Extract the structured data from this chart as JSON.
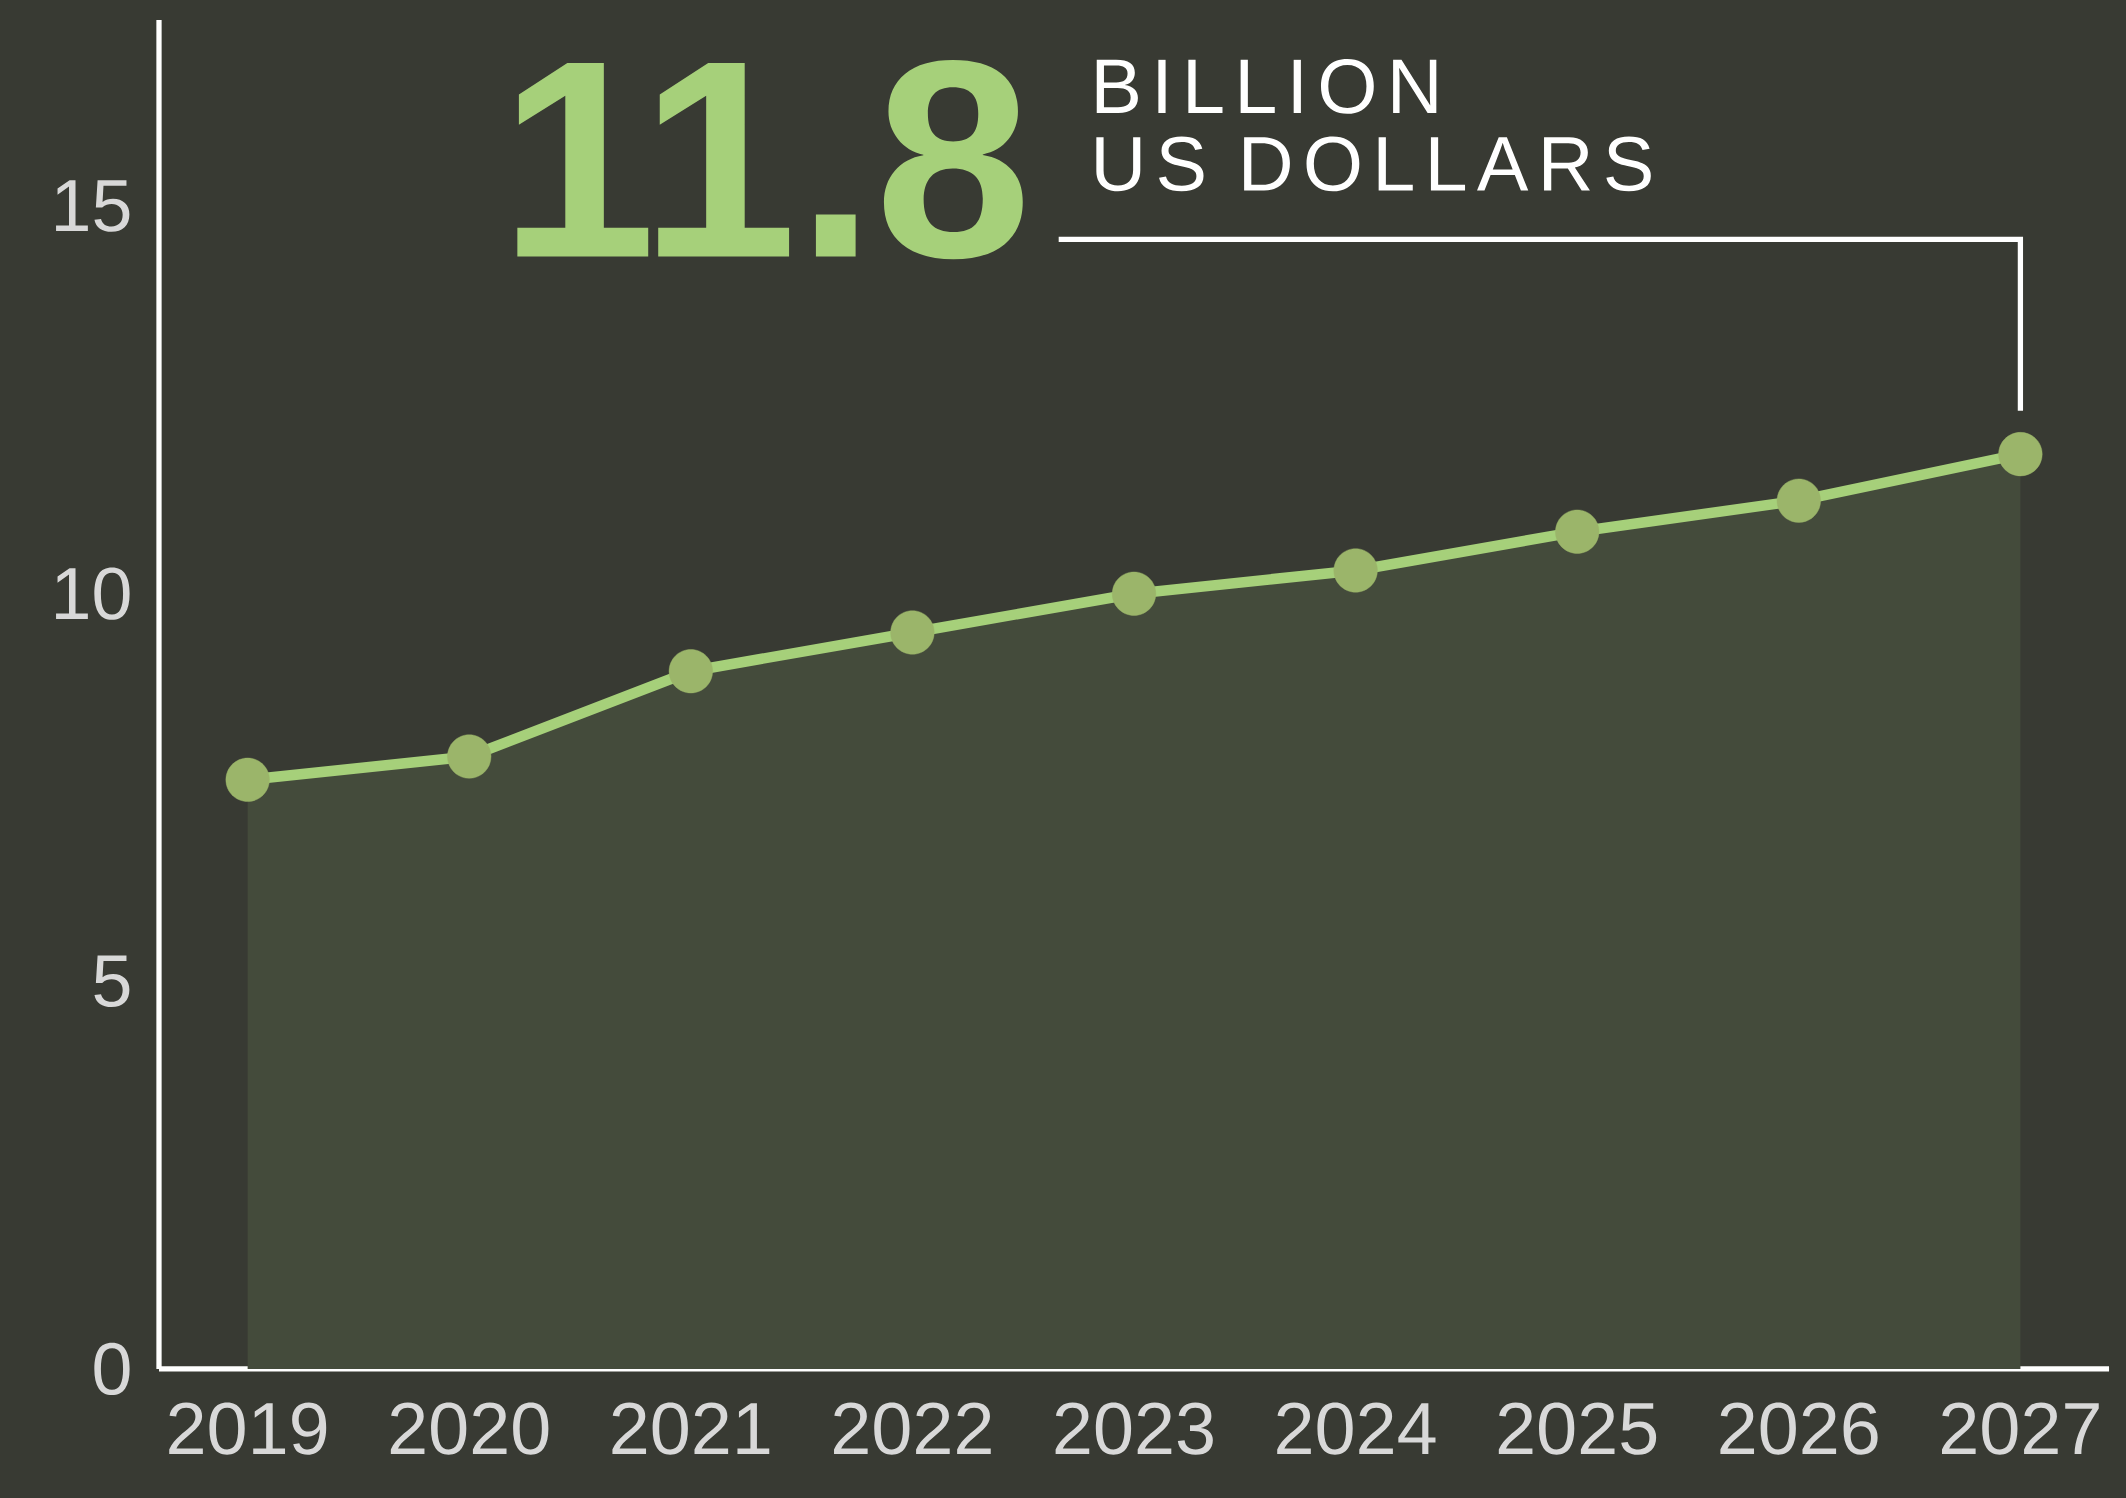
{
  "chart_data": {
    "type": "area",
    "x": [
      2019,
      2020,
      2021,
      2022,
      2023,
      2024,
      2025,
      2026,
      2027
    ],
    "values": [
      7.6,
      7.9,
      9.0,
      9.5,
      10.0,
      10.3,
      10.8,
      11.2,
      11.8
    ],
    "color": "#a6d07a",
    "marker": "circle",
    "xlim": [
      2018.6,
      2027.4
    ],
    "xticks": [
      2019,
      2020,
      2021,
      2022,
      2023,
      2024,
      2025,
      2026,
      2027
    ],
    "ylim": [
      0,
      17.4
    ],
    "yticks": [
      0,
      5,
      10,
      15
    ],
    "annotations": [
      "11.8",
      "BILLION",
      "US DOLLARS"
    ]
  }
}
